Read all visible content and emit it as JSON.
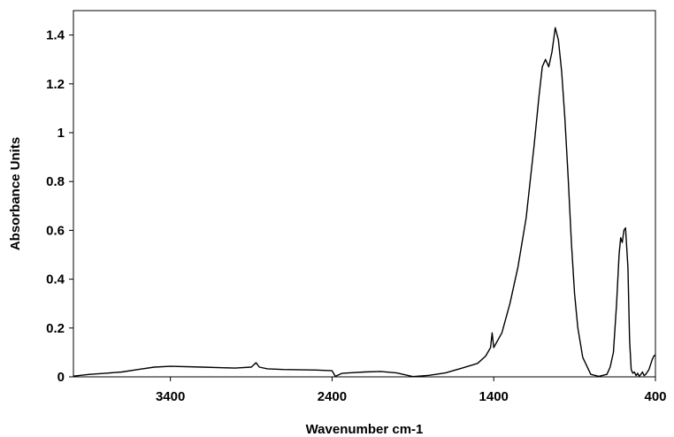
{
  "chart_data": {
    "type": "line",
    "title": "",
    "xlabel": "Wavenumber cm-1",
    "ylabel": "Absorbance Units",
    "xlim": [
      4000,
      400
    ],
    "ylim": [
      0,
      1.5
    ],
    "x_reversed": true,
    "grid": false,
    "legend": "none",
    "x_ticks": [
      3400,
      2400,
      1400,
      400
    ],
    "x_tick_labels": [
      "3400",
      "2400",
      "1400",
      "400"
    ],
    "y_ticks": [
      0,
      0.2,
      0.4,
      0.6,
      0.8,
      1,
      1.2,
      1.4
    ],
    "y_tick_labels": [
      "0",
      "0.2",
      "0.4",
      "0.6",
      "0.8",
      "1",
      "1.2",
      "1.4"
    ],
    "line_color": "#000000",
    "series": [
      {
        "x": [
          4000,
          3900,
          3800,
          3700,
          3600,
          3500,
          3400,
          3200,
          3000,
          2900,
          2870,
          2850,
          2800,
          2700,
          2500,
          2400,
          2380,
          2370,
          2340,
          2300,
          2200,
          2100,
          2000,
          1900,
          1800,
          1700,
          1600,
          1500,
          1450,
          1420,
          1410,
          1400,
          1350,
          1300,
          1250,
          1200,
          1150,
          1120,
          1100,
          1080,
          1060,
          1040,
          1030,
          1020,
          1000,
          980,
          960,
          940,
          920,
          900,
          880,
          850,
          800,
          750,
          700,
          680,
          660,
          640,
          625,
          615,
          605,
          595,
          585,
          570,
          560,
          550,
          540,
          530,
          520,
          510,
          500,
          490,
          480,
          470,
          460,
          450,
          440,
          430,
          420,
          410,
          400
        ],
        "y": [
          0.003,
          0.01,
          0.015,
          0.02,
          0.03,
          0.04,
          0.043,
          0.04,
          0.036,
          0.04,
          0.058,
          0.04,
          0.033,
          0.03,
          0.028,
          0.025,
          0.002,
          0.005,
          0.014,
          0.016,
          0.02,
          0.022,
          0.016,
          0.001,
          0.006,
          0.016,
          0.035,
          0.055,
          0.085,
          0.12,
          0.18,
          0.12,
          0.18,
          0.3,
          0.45,
          0.65,
          0.95,
          1.15,
          1.27,
          1.3,
          1.27,
          1.33,
          1.38,
          1.43,
          1.38,
          1.25,
          1.06,
          0.82,
          0.55,
          0.34,
          0.2,
          0.08,
          0.01,
          0.002,
          0.01,
          0.04,
          0.1,
          0.3,
          0.5,
          0.57,
          0.55,
          0.6,
          0.61,
          0.45,
          0.15,
          0.03,
          0.015,
          0.02,
          0.005,
          0.015,
          0.002,
          0.01,
          0.02,
          0.005,
          0.01,
          0.02,
          0.03,
          0.05,
          0.07,
          0.085,
          0.09
        ]
      }
    ]
  }
}
